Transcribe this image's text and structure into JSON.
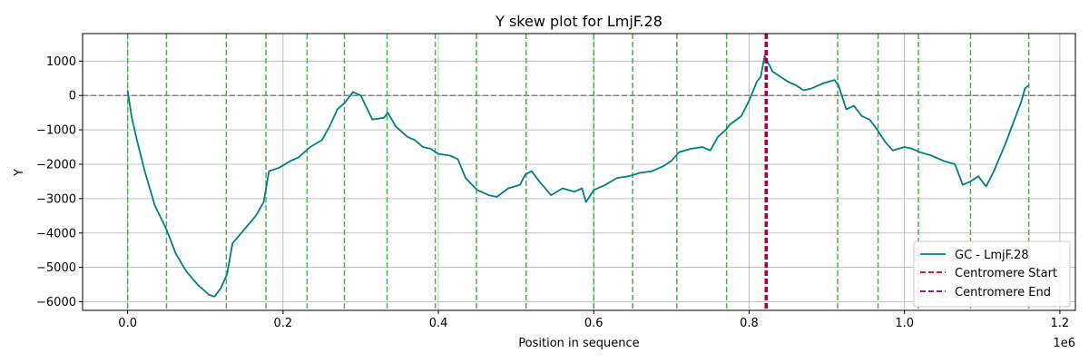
{
  "chart_data": {
    "type": "line",
    "title": "Y skew plot for LmjF.28",
    "xlabel": "Position in sequence",
    "ylabel": "Y",
    "x_offset_label": "1e6",
    "xlim": [
      -0.058,
      1.22
    ],
    "ylim": [
      -6250,
      1800
    ],
    "x_ticks": [
      0.0,
      0.2,
      0.4,
      0.6,
      0.8,
      1.0,
      1.2
    ],
    "x_tick_labels": [
      "0.0",
      "0.2",
      "0.4",
      "0.6",
      "0.8",
      "1.0",
      "1.2"
    ],
    "y_ticks": [
      -6000,
      -5000,
      -4000,
      -3000,
      -2000,
      -1000,
      0,
      1000
    ],
    "y_tick_labels": [
      "−6000",
      "−5000",
      "−4000",
      "−3000",
      "−2000",
      "−1000",
      "0",
      "1000"
    ],
    "grid": true,
    "legend_position": "lower-right",
    "series": [
      {
        "name": "GC - LmjF.28",
        "color": "#008080",
        "x": [
          0.0,
          0.005,
          0.012,
          0.022,
          0.035,
          0.05,
          0.062,
          0.075,
          0.09,
          0.105,
          0.112,
          0.12,
          0.128,
          0.135,
          0.15,
          0.165,
          0.175,
          0.182,
          0.195,
          0.21,
          0.22,
          0.235,
          0.25,
          0.26,
          0.27,
          0.28,
          0.29,
          0.3,
          0.315,
          0.33,
          0.335,
          0.345,
          0.36,
          0.37,
          0.38,
          0.39,
          0.4,
          0.415,
          0.425,
          0.435,
          0.45,
          0.465,
          0.475,
          0.49,
          0.505,
          0.512,
          0.52,
          0.53,
          0.545,
          0.56,
          0.575,
          0.585,
          0.59,
          0.6,
          0.615,
          0.63,
          0.645,
          0.66,
          0.675,
          0.69,
          0.7,
          0.71,
          0.725,
          0.74,
          0.75,
          0.76,
          0.77,
          0.775,
          0.79,
          0.8,
          0.81,
          0.815,
          0.82,
          0.83,
          0.84,
          0.85,
          0.86,
          0.87,
          0.88,
          0.895,
          0.91,
          0.915,
          0.925,
          0.935,
          0.945,
          0.955,
          0.965,
          0.975,
          0.985,
          1.0,
          1.01,
          1.02,
          1.035,
          1.05,
          1.065,
          1.075,
          1.085,
          1.095,
          1.105,
          1.115,
          1.13,
          1.14,
          1.15,
          1.155,
          1.16
        ],
        "y": [
          150,
          -600,
          -1300,
          -2200,
          -3200,
          -3900,
          -4600,
          -5100,
          -5500,
          -5800,
          -5850,
          -5600,
          -5200,
          -4300,
          -3900,
          -3500,
          -3100,
          -2200,
          -2100,
          -1900,
          -1800,
          -1500,
          -1300,
          -900,
          -400,
          -200,
          100,
          0,
          -700,
          -650,
          -500,
          -900,
          -1200,
          -1300,
          -1500,
          -1550,
          -1700,
          -1750,
          -1850,
          -2400,
          -2750,
          -2900,
          -2950,
          -2700,
          -2600,
          -2300,
          -2200,
          -2500,
          -2900,
          -2700,
          -2800,
          -2700,
          -3100,
          -2750,
          -2600,
          -2400,
          -2350,
          -2250,
          -2200,
          -2050,
          -1900,
          -1650,
          -1550,
          -1500,
          -1600,
          -1200,
          -1000,
          -850,
          -600,
          -150,
          400,
          550,
          1150,
          700,
          550,
          400,
          300,
          150,
          200,
          350,
          450,
          300,
          -400,
          -300,
          -600,
          -700,
          -1000,
          -1350,
          -1600,
          -1500,
          -1550,
          -1650,
          -1750,
          -1900,
          -2000,
          -2600,
          -2500,
          -2350,
          -2650,
          -2200,
          -1400,
          -800,
          -200,
          200,
          300
        ]
      }
    ],
    "vlines_green": {
      "color": "#4caf50",
      "x": [
        0.0,
        0.05,
        0.127,
        0.178,
        0.231,
        0.279,
        0.334,
        0.396,
        0.449,
        0.513,
        0.6,
        0.65,
        0.707,
        0.771,
        0.914,
        0.966,
        1.018,
        1.085,
        1.16
      ]
    },
    "centromere_start": {
      "name": "Centromere Start",
      "x": 0.821,
      "color": "#e00000"
    },
    "centromere_end": {
      "name": "Centromere End",
      "x": 0.823,
      "color": "#800080"
    },
    "zero_line_color": "#808080"
  }
}
